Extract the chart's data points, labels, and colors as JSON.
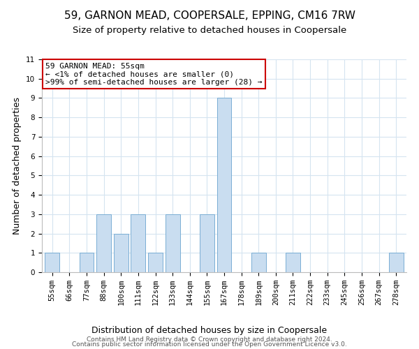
{
  "title": "59, GARNON MEAD, COOPERSALE, EPPING, CM16 7RW",
  "subtitle": "Size of property relative to detached houses in Coopersale",
  "xlabel": "Distribution of detached houses by size in Coopersale",
  "ylabel": "Number of detached properties",
  "bar_labels": [
    "55sqm",
    "66sqm",
    "77sqm",
    "88sqm",
    "100sqm",
    "111sqm",
    "122sqm",
    "133sqm",
    "144sqm",
    "155sqm",
    "167sqm",
    "178sqm",
    "189sqm",
    "200sqm",
    "211sqm",
    "222sqm",
    "233sqm",
    "245sqm",
    "256sqm",
    "267sqm",
    "278sqm"
  ],
  "bar_values": [
    1,
    0,
    1,
    3,
    2,
    3,
    1,
    3,
    0,
    3,
    9,
    0,
    1,
    0,
    1,
    0,
    0,
    0,
    0,
    0,
    1
  ],
  "bar_color": "#c9ddf0",
  "bar_edge_color": "#7aaed4",
  "ylim": [
    0,
    11
  ],
  "yticks": [
    0,
    1,
    2,
    3,
    4,
    5,
    6,
    7,
    8,
    9,
    10,
    11
  ],
  "annotation_title": "59 GARNON MEAD: 55sqm",
  "annotation_line1": "← <1% of detached houses are smaller (0)",
  "annotation_line2": ">99% of semi-detached houses are larger (28) →",
  "annotation_box_color": "#ffffff",
  "annotation_box_edge_color": "#cc0000",
  "footer_line1": "Contains HM Land Registry data © Crown copyright and database right 2024.",
  "footer_line2": "Contains public sector information licensed under the Open Government Licence v3.0.",
  "grid_color": "#d5e4f0",
  "background_color": "#ffffff",
  "title_fontsize": 11,
  "subtitle_fontsize": 9.5,
  "axis_label_fontsize": 9,
  "tick_fontsize": 7.5,
  "footer_fontsize": 6.5,
  "annotation_fontsize": 8
}
